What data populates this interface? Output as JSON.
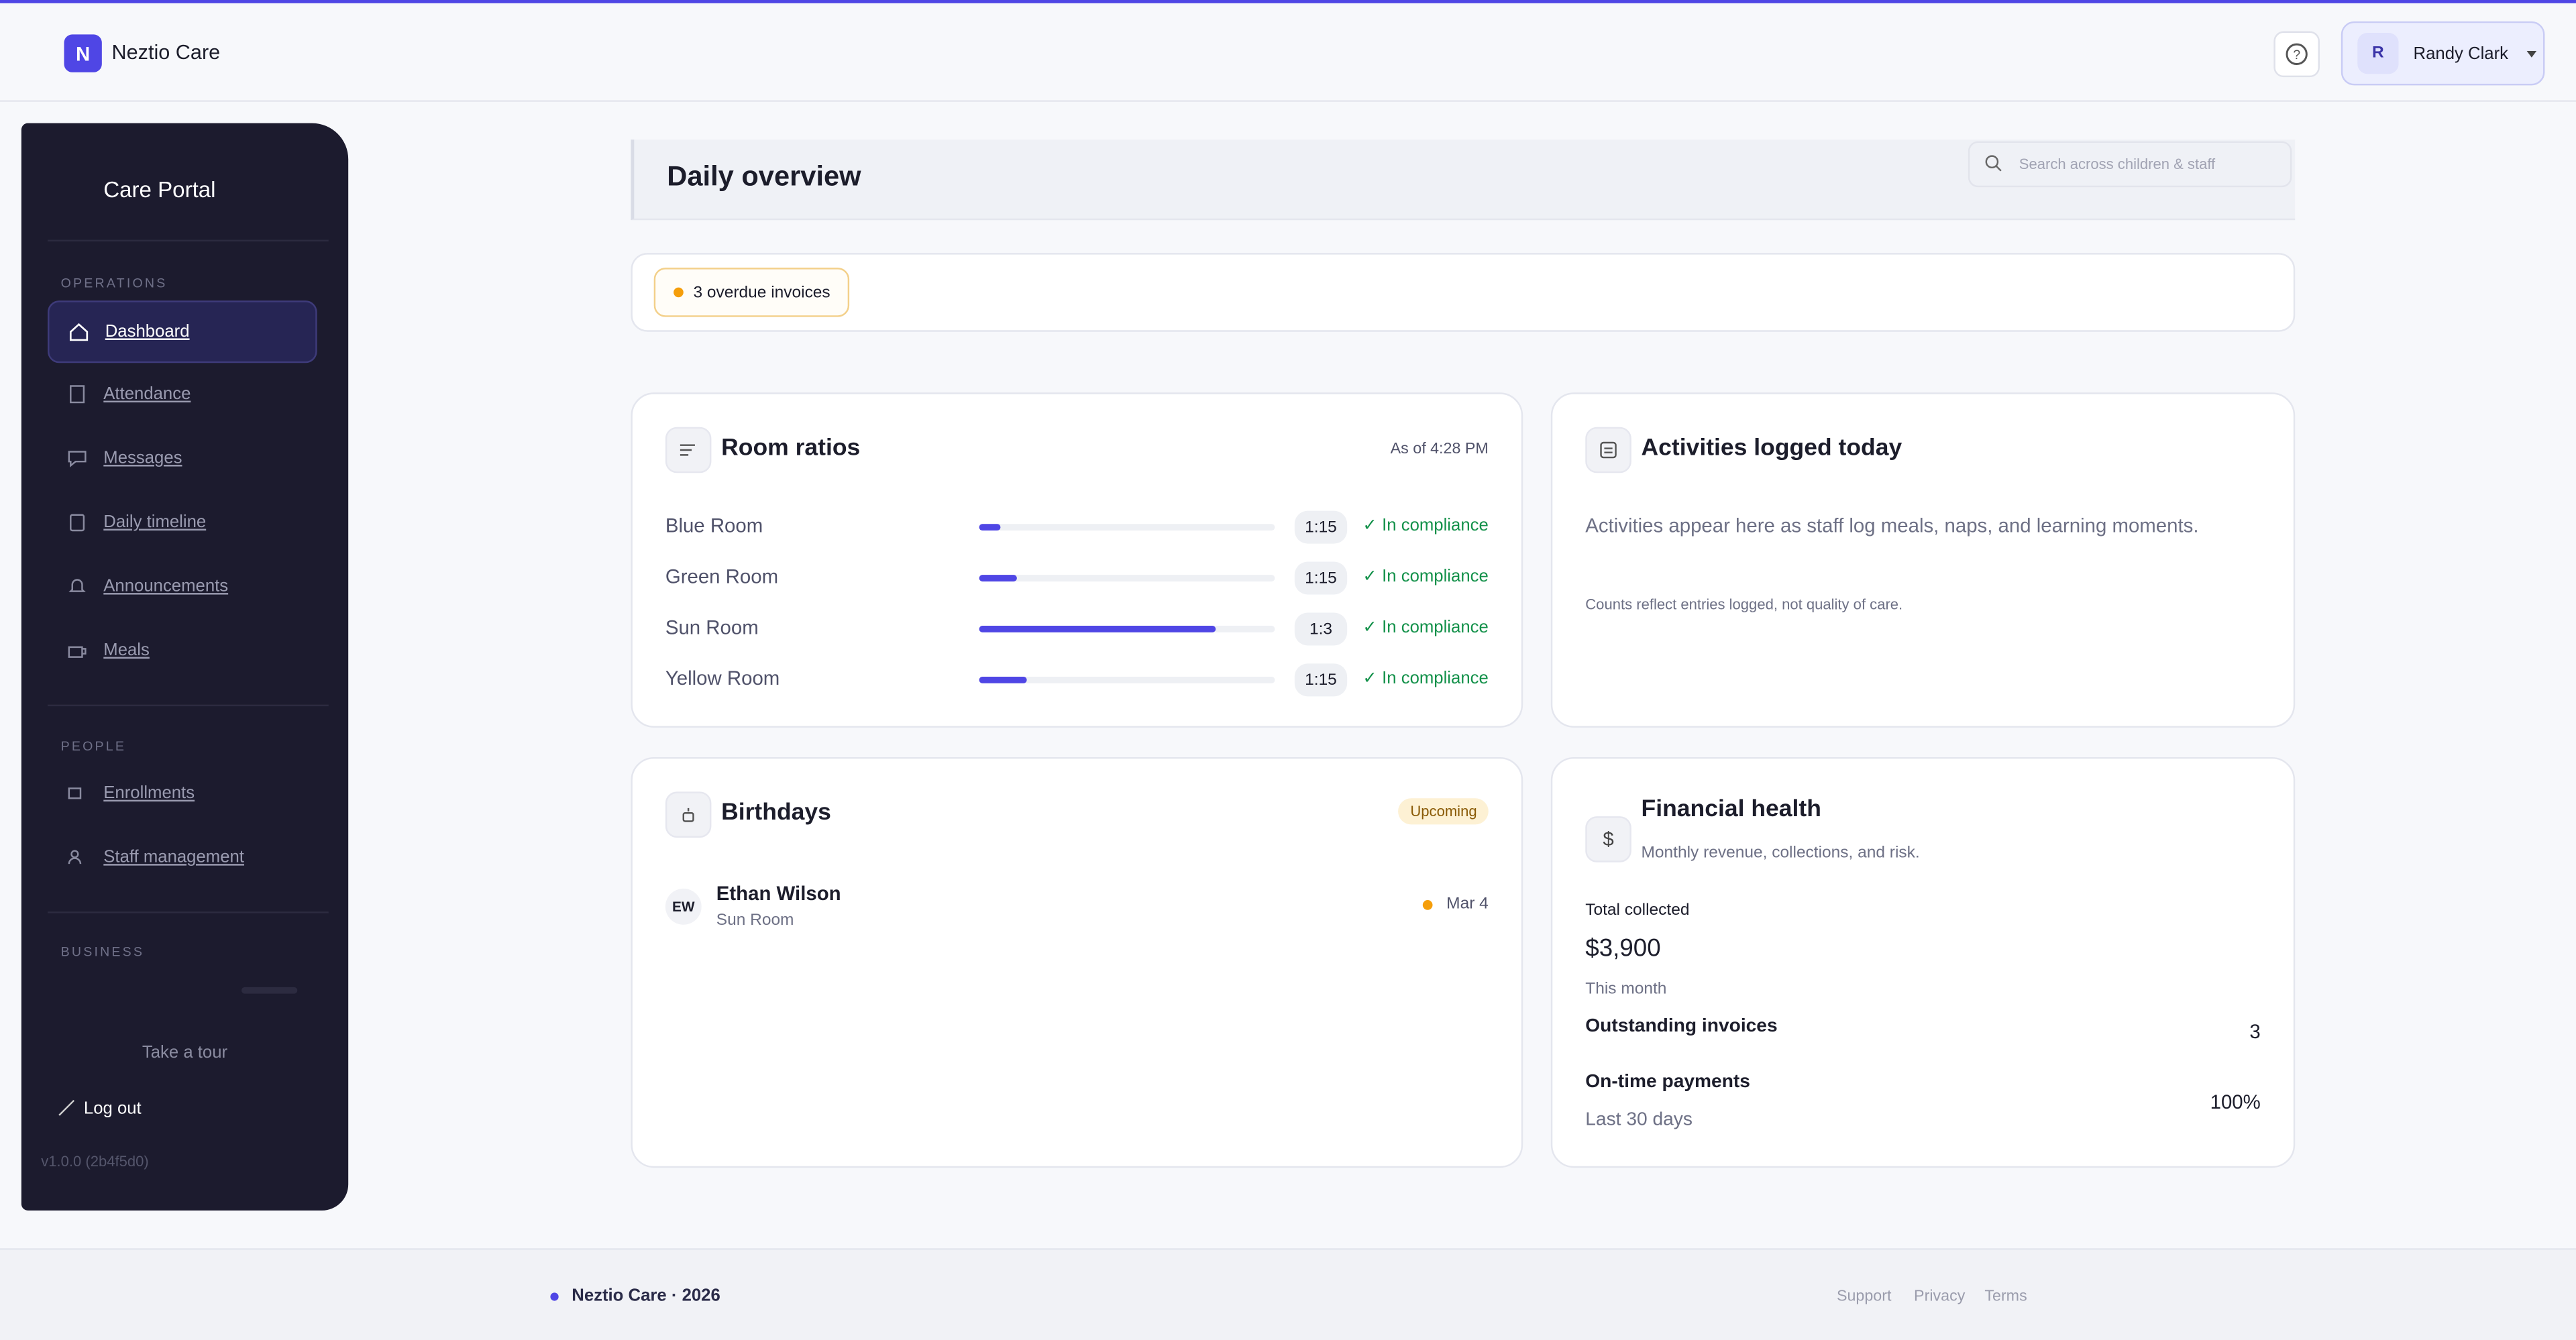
{
  "header": {
    "brand_initial": "N",
    "brand": "Neztio Care",
    "user_initial": "R",
    "user_name": "Randy Clark"
  },
  "sidebar": {
    "title": "Care Portal",
    "sections": [
      {
        "label": "OPERATIONS",
        "items": [
          "Dashboard",
          "Attendance",
          "Messages",
          "Daily timeline",
          "Announcements",
          "Meals"
        ]
      },
      {
        "label": "PEOPLE",
        "items": [
          "Enrollments",
          "Staff management"
        ]
      },
      {
        "label": "BUSINESS",
        "items": []
      }
    ],
    "tour": "Take a tour",
    "logout": "Log out",
    "version": "v1.0.0 (2b4f5d0)"
  },
  "page": {
    "title": "Daily overview",
    "search_placeholder": "Search across children & staff"
  },
  "alert": "3 overdue invoices",
  "room_ratios": {
    "title": "Room ratios",
    "as_of": "As of 4:28 PM",
    "rooms": [
      {
        "name": "Blue Room",
        "load": 7,
        "ratio": "1:15",
        "status": "✓ In compliance"
      },
      {
        "name": "Green Room",
        "load": 13,
        "ratio": "1:15",
        "status": "✓ In compliance"
      },
      {
        "name": "Sun Room",
        "load": 80,
        "ratio": "1:3",
        "status": "✓ In compliance"
      },
      {
        "name": "Yellow Room",
        "load": 16,
        "ratio": "1:15",
        "status": "✓ In compliance"
      }
    ]
  },
  "activities": {
    "title": "Activities logged today",
    "message": "Activities appear here as staff log meals, naps, and learning moments.",
    "note": "Counts reflect entries logged, not quality of care."
  },
  "birthdays": {
    "title": "Birthdays",
    "badge": "Upcoming",
    "people": [
      {
        "initials": "EW",
        "name": "Ethan Wilson",
        "room": "Sun Room",
        "date": "Mar 4"
      }
    ]
  },
  "financial": {
    "title": "Financial health",
    "subtitle": "Monthly revenue, collections, and risk.",
    "total_label": "Total collected",
    "total": "$3,900",
    "period": "This month",
    "outstanding_label": "Outstanding invoices",
    "outstanding": 3,
    "ontime_label": "On-time payments",
    "ontime_period": "Last 30 days",
    "ontime": "100%"
  },
  "footer": {
    "brand": "Neztio Care · 2026",
    "links": [
      "Support",
      "Privacy",
      "Terms"
    ]
  }
}
